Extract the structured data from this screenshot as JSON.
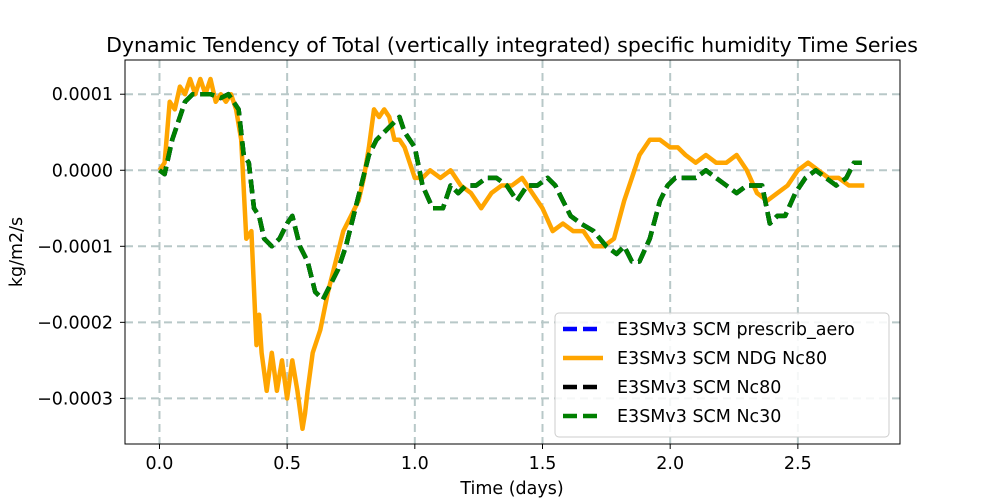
{
  "chart_data": {
    "type": "line",
    "title": "Dynamic Tendency of Total (vertically integrated) specific humidity Time Series",
    "xlabel": "Time (days)",
    "ylabel": "kg/m2/s",
    "xlim": [
      -0.135,
      2.9
    ],
    "ylim": [
      -0.00036,
      0.000145
    ],
    "x_ticks": [
      0.0,
      0.5,
      1.0,
      1.5,
      2.0,
      2.5
    ],
    "x_tick_labels": [
      "0.0",
      "0.5",
      "1.0",
      "1.5",
      "2.0",
      "2.5"
    ],
    "y_ticks": [
      0.0001,
      0.0,
      -0.0001,
      -0.0002,
      -0.0003
    ],
    "y_tick_labels": [
      "0.0001",
      "0.0000",
      "−0.0001",
      "−0.0002",
      "−0.0003"
    ],
    "grid": true,
    "legend_position": "lower-right",
    "series": [
      {
        "name": "E3SMv3 SCM prescrib_aero",
        "color": "#0000ff",
        "style": "dashed",
        "x": [
          0.0,
          0.02,
          0.05,
          0.08,
          0.1,
          0.13,
          0.16,
          0.2,
          0.24,
          0.27,
          0.29,
          0.31,
          0.33,
          0.35,
          0.37,
          0.39,
          0.41,
          0.44,
          0.47,
          0.5,
          0.52,
          0.55,
          0.58,
          0.61,
          0.64,
          0.67,
          0.7,
          0.73,
          0.76,
          0.79,
          0.82,
          0.85,
          0.88,
          0.91,
          0.94,
          0.96,
          0.98,
          1.0,
          1.03,
          1.07,
          1.11,
          1.14,
          1.17,
          1.2,
          1.24,
          1.28,
          1.32,
          1.36,
          1.4,
          1.44,
          1.48,
          1.52,
          1.55,
          1.58,
          1.61,
          1.65,
          1.7,
          1.75,
          1.79,
          1.82,
          1.85,
          1.88,
          1.92,
          1.96,
          1.99,
          2.02,
          2.06,
          2.1,
          2.14,
          2.18,
          2.22,
          2.26,
          2.3,
          2.33,
          2.36,
          2.39,
          2.42,
          2.45,
          2.49,
          2.53,
          2.57,
          2.61,
          2.65,
          2.69,
          2.72,
          2.75
        ],
        "y": [
          0.0,
          -5e-06,
          4e-05,
          7e-05,
          9e-05,
          0.0001,
          0.0001,
          0.0001,
          9.5e-05,
          0.0001,
          9e-05,
          8e-05,
          2e-05,
          1e-05,
          -5e-05,
          -6e-05,
          -9e-05,
          -0.0001,
          -9e-05,
          -7e-05,
          -6e-05,
          -0.0001,
          -0.00012,
          -0.00016,
          -0.00017,
          -0.00015,
          -0.00013,
          -0.0001,
          -6e-05,
          -2e-05,
          2e-05,
          4e-05,
          5e-05,
          6e-05,
          7e-05,
          5e-05,
          4e-05,
          3e-05,
          -2e-05,
          -5e-05,
          -5e-05,
          -2e-05,
          -3e-05,
          -2e-05,
          -2e-05,
          -1e-05,
          -1e-05,
          -2e-05,
          -4e-05,
          -2e-05,
          -2e-05,
          -1e-05,
          -2e-05,
          -4e-05,
          -6e-05,
          -7e-05,
          -8e-05,
          -0.0001,
          -0.00011,
          -0.0001,
          -0.00012,
          -0.00012,
          -9e-05,
          -4e-05,
          -2e-05,
          -1e-05,
          -1e-05,
          -1e-05,
          0.0,
          -1e-05,
          -2e-05,
          -3e-05,
          -2e-05,
          -2e-05,
          -2e-05,
          -7e-05,
          -6e-05,
          -6e-05,
          -3e-05,
          -1e-05,
          0.0,
          -1e-05,
          -2e-05,
          -1e-05,
          1e-05,
          1e-05
        ]
      },
      {
        "name": "E3SMv3 SCM NDG Nc80",
        "color": "#ffa500",
        "style": "solid",
        "x": [
          0.0,
          0.02,
          0.04,
          0.06,
          0.08,
          0.1,
          0.12,
          0.14,
          0.16,
          0.18,
          0.2,
          0.22,
          0.24,
          0.26,
          0.28,
          0.3,
          0.32,
          0.34,
          0.36,
          0.38,
          0.39,
          0.4,
          0.42,
          0.44,
          0.46,
          0.48,
          0.5,
          0.52,
          0.54,
          0.56,
          0.57,
          0.58,
          0.6,
          0.63,
          0.66,
          0.69,
          0.72,
          0.75,
          0.78,
          0.8,
          0.82,
          0.84,
          0.86,
          0.88,
          0.9,
          0.92,
          0.94,
          0.96,
          0.98,
          1.0,
          1.03,
          1.06,
          1.1,
          1.14,
          1.18,
          1.22,
          1.26,
          1.3,
          1.34,
          1.38,
          1.42,
          1.46,
          1.5,
          1.54,
          1.58,
          1.62,
          1.66,
          1.7,
          1.74,
          1.78,
          1.82,
          1.85,
          1.88,
          1.92,
          1.96,
          2.0,
          2.03,
          2.06,
          2.1,
          2.14,
          2.18,
          2.22,
          2.26,
          2.3,
          2.34,
          2.38,
          2.42,
          2.46,
          2.5,
          2.54,
          2.58,
          2.62,
          2.66,
          2.7,
          2.73,
          2.76
        ],
        "y": [
          0.0,
          1e-05,
          9e-05,
          8e-05,
          0.00011,
          0.0001,
          0.00012,
          0.0001,
          0.00012,
          0.0001,
          0.00012,
          9e-05,
          0.0001,
          9e-05,
          0.0001,
          8e-05,
          4e-05,
          -9e-05,
          -8e-05,
          -0.00023,
          -0.00019,
          -0.00024,
          -0.00029,
          -0.00024,
          -0.00029,
          -0.00025,
          -0.0003,
          -0.00025,
          -0.00029,
          -0.00034,
          -0.00032,
          -0.00029,
          -0.00024,
          -0.00021,
          -0.00016,
          -0.00012,
          -8e-05,
          -6e-05,
          -4e-05,
          -1e-05,
          3e-05,
          8e-05,
          7e-05,
          8e-05,
          7e-05,
          4e-05,
          4e-05,
          3e-05,
          1e-05,
          -1e-05,
          -1e-05,
          0.0,
          -1e-05,
          0.0,
          -2e-05,
          -3e-05,
          -5e-05,
          -3e-05,
          -2e-05,
          -2e-05,
          -1e-05,
          -3e-05,
          -5e-05,
          -8e-05,
          -7e-05,
          -8e-05,
          -8e-05,
          -0.0001,
          -0.0001,
          -9e-05,
          -4e-05,
          -1e-05,
          2e-05,
          4e-05,
          4e-05,
          3e-05,
          3e-05,
          2e-05,
          1e-05,
          2e-05,
          1e-05,
          1e-05,
          2e-05,
          0.0,
          -3e-05,
          -4e-05,
          -3e-05,
          -2e-05,
          0.0,
          1e-05,
          0.0,
          -1e-05,
          -1e-05,
          -2e-05,
          -2e-05,
          -2e-05
        ]
      },
      {
        "name": "E3SMv3 SCM Nc80",
        "color": "#000000",
        "style": "dashed",
        "x": [
          0.0,
          0.02,
          0.05,
          0.08,
          0.1,
          0.13,
          0.16,
          0.2,
          0.24,
          0.27,
          0.29,
          0.31,
          0.33,
          0.35,
          0.37,
          0.39,
          0.41,
          0.44,
          0.47,
          0.5,
          0.52,
          0.55,
          0.58,
          0.61,
          0.64,
          0.67,
          0.7,
          0.73,
          0.76,
          0.79,
          0.82,
          0.85,
          0.88,
          0.91,
          0.94,
          0.96,
          0.98,
          1.0,
          1.03,
          1.07,
          1.11,
          1.14,
          1.17,
          1.2,
          1.24,
          1.28,
          1.32,
          1.36,
          1.4,
          1.44,
          1.48,
          1.52,
          1.55,
          1.58,
          1.61,
          1.65,
          1.7,
          1.75,
          1.79,
          1.82,
          1.85,
          1.88,
          1.92,
          1.96,
          1.99,
          2.02,
          2.06,
          2.1,
          2.14,
          2.18,
          2.22,
          2.26,
          2.3,
          2.33,
          2.36,
          2.39,
          2.42,
          2.45,
          2.49,
          2.53,
          2.57,
          2.61,
          2.65,
          2.69,
          2.72,
          2.75
        ],
        "y": [
          0.0,
          -5e-06,
          4e-05,
          7e-05,
          9e-05,
          0.0001,
          0.0001,
          0.0001,
          9.5e-05,
          0.0001,
          9e-05,
          8e-05,
          2e-05,
          1e-05,
          -5e-05,
          -6e-05,
          -9e-05,
          -0.0001,
          -9e-05,
          -7e-05,
          -6e-05,
          -0.0001,
          -0.00012,
          -0.00016,
          -0.00017,
          -0.00015,
          -0.00013,
          -0.0001,
          -6e-05,
          -2e-05,
          2e-05,
          4e-05,
          5e-05,
          6e-05,
          7e-05,
          5e-05,
          4e-05,
          3e-05,
          -2e-05,
          -5e-05,
          -5e-05,
          -2e-05,
          -3e-05,
          -2e-05,
          -2e-05,
          -1e-05,
          -1e-05,
          -2e-05,
          -4e-05,
          -2e-05,
          -2e-05,
          -1e-05,
          -2e-05,
          -4e-05,
          -6e-05,
          -7e-05,
          -8e-05,
          -0.0001,
          -0.00011,
          -0.0001,
          -0.00012,
          -0.00012,
          -9e-05,
          -4e-05,
          -2e-05,
          -1e-05,
          -1e-05,
          -1e-05,
          0.0,
          -1e-05,
          -2e-05,
          -3e-05,
          -2e-05,
          -2e-05,
          -2e-05,
          -7e-05,
          -6e-05,
          -6e-05,
          -3e-05,
          -1e-05,
          0.0,
          -1e-05,
          -2e-05,
          -1e-05,
          1e-05,
          1e-05
        ]
      },
      {
        "name": "E3SMv3 SCM Nc30",
        "color": "#008000",
        "style": "dashed",
        "x": [
          0.0,
          0.02,
          0.05,
          0.08,
          0.1,
          0.13,
          0.16,
          0.2,
          0.24,
          0.27,
          0.29,
          0.31,
          0.33,
          0.35,
          0.37,
          0.39,
          0.41,
          0.44,
          0.47,
          0.5,
          0.52,
          0.55,
          0.58,
          0.61,
          0.64,
          0.67,
          0.7,
          0.73,
          0.76,
          0.79,
          0.82,
          0.85,
          0.88,
          0.91,
          0.94,
          0.96,
          0.98,
          1.0,
          1.03,
          1.07,
          1.11,
          1.14,
          1.17,
          1.2,
          1.24,
          1.28,
          1.32,
          1.36,
          1.4,
          1.44,
          1.48,
          1.52,
          1.55,
          1.58,
          1.61,
          1.65,
          1.7,
          1.75,
          1.79,
          1.82,
          1.85,
          1.88,
          1.92,
          1.96,
          1.99,
          2.02,
          2.06,
          2.1,
          2.14,
          2.18,
          2.22,
          2.26,
          2.3,
          2.33,
          2.36,
          2.39,
          2.42,
          2.45,
          2.49,
          2.53,
          2.57,
          2.61,
          2.65,
          2.69,
          2.72,
          2.75
        ],
        "y": [
          0.0,
          -5e-06,
          4e-05,
          7e-05,
          9e-05,
          0.0001,
          0.0001,
          0.0001,
          9.5e-05,
          0.0001,
          9e-05,
          8e-05,
          2e-05,
          1e-05,
          -5e-05,
          -6e-05,
          -9e-05,
          -0.0001,
          -9e-05,
          -7e-05,
          -6e-05,
          -0.0001,
          -0.00012,
          -0.00016,
          -0.00017,
          -0.00015,
          -0.00013,
          -0.0001,
          -6e-05,
          -2e-05,
          2e-05,
          4e-05,
          5e-05,
          6e-05,
          7e-05,
          5e-05,
          4e-05,
          3e-05,
          -2e-05,
          -5e-05,
          -5e-05,
          -2e-05,
          -3e-05,
          -2e-05,
          -2e-05,
          -1e-05,
          -1e-05,
          -2e-05,
          -4e-05,
          -2e-05,
          -2e-05,
          -1e-05,
          -2e-05,
          -4e-05,
          -6e-05,
          -7e-05,
          -8e-05,
          -0.0001,
          -0.00011,
          -0.0001,
          -0.00012,
          -0.00012,
          -9e-05,
          -4e-05,
          -2e-05,
          -1e-05,
          -1e-05,
          -1e-05,
          0.0,
          -1e-05,
          -2e-05,
          -3e-05,
          -2e-05,
          -2e-05,
          -2e-05,
          -7e-05,
          -6e-05,
          -6e-05,
          -3e-05,
          -1e-05,
          0.0,
          -1e-05,
          -2e-05,
          -1e-05,
          1e-05,
          1e-05
        ]
      }
    ]
  }
}
